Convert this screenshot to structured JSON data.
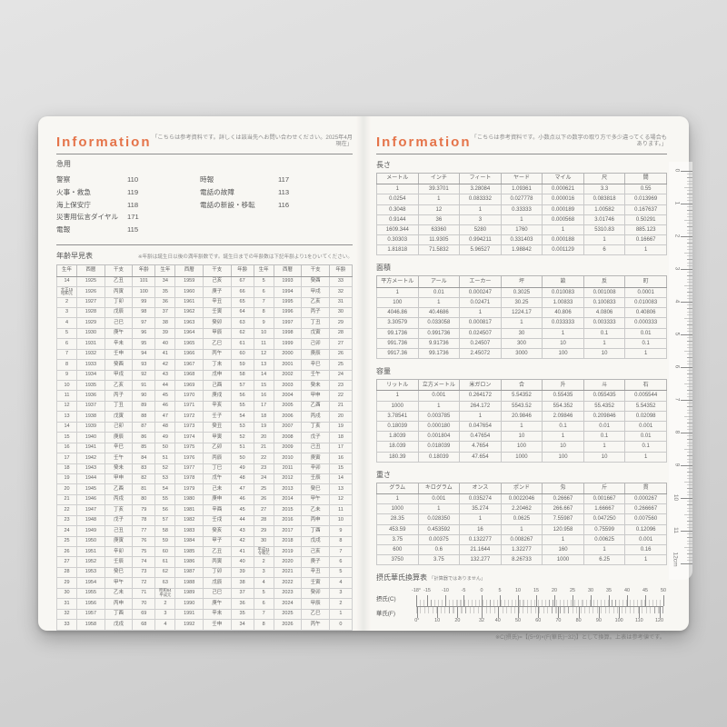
{
  "left_page": {
    "title": "Information",
    "note": "「こちらは参考資料です。詳しくは該当先へお問い合わせください。2025年4月現在」",
    "emergency": {
      "heading": "急用",
      "col1": [
        {
          "label": "警察",
          "number": "110"
        },
        {
          "label": "火事・救急",
          "number": "119"
        },
        {
          "label": "海上保安庁",
          "number": "118"
        },
        {
          "label": "災害用伝言ダイヤル",
          "number": "171"
        },
        {
          "label": "電報",
          "number": "115"
        }
      ],
      "col2": [
        {
          "label": "時報",
          "number": "117"
        },
        {
          "label": "電話の故障",
          "number": "113"
        },
        {
          "label": "電話の新設・移転",
          "number": "116"
        }
      ]
    },
    "age_section": {
      "heading": "年齢早見表",
      "note": "※年齢は誕生日以後の満年齢数です。誕生日までの年齢数は下記年齢より1をひいてください。",
      "table": {
        "headers": [
          "生年",
          "西暦",
          "干支",
          "年齢",
          "生年",
          "西暦",
          "干支",
          "年齢",
          "生年",
          "西暦",
          "干支",
          "年齢"
        ],
        "rows": [
          [
            "14",
            "1925",
            "乙丑",
            "101",
            "34",
            "1959",
            "己亥",
            "67",
            "5",
            "1993",
            "癸酉",
            "33"
          ],
          [
            "大正15\n昭和元",
            "1926",
            "丙寅",
            "100",
            "35",
            "1960",
            "庚子",
            "66",
            "6",
            "1994",
            "甲戌",
            "32"
          ],
          [
            "2",
            "1927",
            "丁卯",
            "99",
            "36",
            "1961",
            "辛丑",
            "65",
            "7",
            "1995",
            "乙亥",
            "31"
          ],
          [
            "3",
            "1928",
            "戊辰",
            "98",
            "37",
            "1962",
            "壬寅",
            "64",
            "8",
            "1996",
            "丙子",
            "30"
          ],
          [
            "4",
            "1929",
            "己巳",
            "97",
            "38",
            "1963",
            "癸卯",
            "63",
            "9",
            "1997",
            "丁丑",
            "29"
          ],
          [
            "5",
            "1930",
            "庚午",
            "96",
            "39",
            "1964",
            "甲辰",
            "62",
            "10",
            "1998",
            "戊寅",
            "28"
          ],
          [
            "6",
            "1931",
            "辛未",
            "95",
            "40",
            "1965",
            "乙巳",
            "61",
            "11",
            "1999",
            "己卯",
            "27"
          ],
          [
            "7",
            "1932",
            "壬申",
            "94",
            "41",
            "1966",
            "丙午",
            "60",
            "12",
            "2000",
            "庚辰",
            "26"
          ],
          [
            "8",
            "1933",
            "癸酉",
            "93",
            "42",
            "1967",
            "丁未",
            "59",
            "13",
            "2001",
            "辛巳",
            "25"
          ],
          [
            "9",
            "1934",
            "甲戌",
            "92",
            "43",
            "1968",
            "戊申",
            "58",
            "14",
            "2002",
            "壬午",
            "24"
          ],
          [
            "10",
            "1935",
            "乙亥",
            "91",
            "44",
            "1969",
            "己酉",
            "57",
            "15",
            "2003",
            "癸未",
            "23"
          ],
          [
            "11",
            "1936",
            "丙子",
            "90",
            "45",
            "1970",
            "庚戌",
            "56",
            "16",
            "2004",
            "甲申",
            "22"
          ],
          [
            "12",
            "1937",
            "丁丑",
            "89",
            "46",
            "1971",
            "辛亥",
            "55",
            "17",
            "2005",
            "乙酉",
            "21"
          ],
          [
            "13",
            "1938",
            "戊寅",
            "88",
            "47",
            "1972",
            "壬子",
            "54",
            "18",
            "2006",
            "丙戌",
            "20"
          ],
          [
            "14",
            "1939",
            "己卯",
            "87",
            "48",
            "1973",
            "癸丑",
            "53",
            "19",
            "2007",
            "丁亥",
            "19"
          ],
          [
            "15",
            "1940",
            "庚辰",
            "86",
            "49",
            "1974",
            "甲寅",
            "52",
            "20",
            "2008",
            "戊子",
            "18"
          ],
          [
            "16",
            "1941",
            "辛巳",
            "85",
            "50",
            "1975",
            "乙卯",
            "51",
            "21",
            "2009",
            "己丑",
            "17"
          ],
          [
            "17",
            "1942",
            "壬午",
            "84",
            "51",
            "1976",
            "丙辰",
            "50",
            "22",
            "2010",
            "庚寅",
            "16"
          ],
          [
            "18",
            "1943",
            "癸未",
            "83",
            "52",
            "1977",
            "丁巳",
            "49",
            "23",
            "2011",
            "辛卯",
            "15"
          ],
          [
            "19",
            "1944",
            "甲申",
            "82",
            "53",
            "1978",
            "戊午",
            "48",
            "24",
            "2012",
            "壬辰",
            "14"
          ],
          [
            "20",
            "1945",
            "乙酉",
            "81",
            "54",
            "1979",
            "己未",
            "47",
            "25",
            "2013",
            "癸巳",
            "13"
          ],
          [
            "21",
            "1946",
            "丙戌",
            "80",
            "55",
            "1980",
            "庚申",
            "46",
            "26",
            "2014",
            "甲午",
            "12"
          ],
          [
            "22",
            "1947",
            "丁亥",
            "79",
            "56",
            "1981",
            "辛酉",
            "45",
            "27",
            "2015",
            "乙未",
            "11"
          ],
          [
            "23",
            "1948",
            "戊子",
            "78",
            "57",
            "1982",
            "壬戌",
            "44",
            "28",
            "2016",
            "丙申",
            "10"
          ],
          [
            "24",
            "1949",
            "己丑",
            "77",
            "58",
            "1983",
            "癸亥",
            "43",
            "29",
            "2017",
            "丁酉",
            "9"
          ],
          [
            "25",
            "1950",
            "庚寅",
            "76",
            "59",
            "1984",
            "甲子",
            "42",
            "30",
            "2018",
            "戊戌",
            "8"
          ],
          [
            "26",
            "1951",
            "辛卯",
            "75",
            "60",
            "1985",
            "乙丑",
            "41",
            "平成31\n令和元",
            "2019",
            "己亥",
            "7"
          ],
          [
            "27",
            "1952",
            "壬辰",
            "74",
            "61",
            "1986",
            "丙寅",
            "40",
            "2",
            "2020",
            "庚子",
            "6"
          ],
          [
            "28",
            "1953",
            "癸巳",
            "73",
            "62",
            "1987",
            "丁卯",
            "39",
            "3",
            "2021",
            "辛丑",
            "5"
          ],
          [
            "29",
            "1954",
            "甲午",
            "72",
            "63",
            "1988",
            "戊辰",
            "38",
            "4",
            "2022",
            "壬寅",
            "4"
          ],
          [
            "30",
            "1955",
            "乙未",
            "71",
            "昭和64\n平成元",
            "1989",
            "己巳",
            "37",
            "5",
            "2023",
            "癸卯",
            "3"
          ],
          [
            "31",
            "1956",
            "丙申",
            "70",
            "2",
            "1990",
            "庚午",
            "36",
            "6",
            "2024",
            "甲辰",
            "2"
          ],
          [
            "32",
            "1957",
            "丁酉",
            "69",
            "3",
            "1991",
            "辛未",
            "35",
            "7",
            "2025",
            "乙巳",
            "1"
          ],
          [
            "33",
            "1958",
            "戊戌",
            "68",
            "4",
            "1992",
            "壬申",
            "34",
            "8",
            "2026",
            "丙午",
            "0"
          ]
        ]
      }
    }
  },
  "right_page": {
    "title": "Information",
    "note": "「こちらは参考資料です。小数点以下の数字の取り方で多少違ってくる場合もあります。」",
    "sections": {
      "length": {
        "heading": "長さ",
        "table": {
          "headers": [
            "メートル",
            "インチ",
            "フィート",
            "ヤード",
            "マイル",
            "尺",
            "間"
          ],
          "rows": [
            [
              "1",
              "39.3701",
              "3.28084",
              "1.09361",
              "0.000621",
              "3.3",
              "0.55"
            ],
            [
              "0.0254",
              "1",
              "0.083332",
              "0.027778",
              "0.000016",
              "0.083818",
              "0.013969"
            ],
            [
              "0.3048",
              "12",
              "1",
              "0.33333",
              "0.000189",
              "1.00582",
              "0.167637"
            ],
            [
              "0.9144",
              "36",
              "3",
              "1",
              "0.000568",
              "3.01746",
              "0.50291"
            ],
            [
              "1609.344",
              "63360",
              "5280",
              "1760",
              "1",
              "5310.83",
              "885.123"
            ],
            [
              "0.30303",
              "11.9305",
              "0.994211",
              "0.331403",
              "0.000188",
              "1",
              "0.16667"
            ],
            [
              "1.81818",
              "71.5832",
              "5.96527",
              "1.98842",
              "0.001129",
              "6",
              "1"
            ]
          ]
        }
      },
      "area": {
        "heading": "面積",
        "table": {
          "headers": [
            "平方メートル",
            "アール",
            "エーカー",
            "坪",
            "畝",
            "反",
            "町"
          ],
          "rows": [
            [
              "1",
              "0.01",
              "0.000247",
              "0.3025",
              "0.010083",
              "0.001008",
              "0.0001"
            ],
            [
              "100",
              "1",
              "0.02471",
              "30.25",
              "1.00833",
              "0.100833",
              "0.010083"
            ],
            [
              "4046.86",
              "40.4686",
              "1",
              "1224.17",
              "40.806",
              "4.0806",
              "0.40806"
            ],
            [
              "3.30579",
              "0.033058",
              "0.000817",
              "1",
              "0.033333",
              "0.003333",
              "0.000333"
            ],
            [
              "99.1736",
              "0.991736",
              "0.024507",
              "30",
              "1",
              "0.1",
              "0.01"
            ],
            [
              "991.736",
              "9.91736",
              "0.24507",
              "300",
              "10",
              "1",
              "0.1"
            ],
            [
              "9917.36",
              "99.1736",
              "2.45072",
              "3000",
              "100",
              "10",
              "1"
            ]
          ]
        }
      },
      "capacity": {
        "heading": "容量",
        "table": {
          "headers": [
            "リットル",
            "立方メートル",
            "米ガロン",
            "合",
            "升",
            "斗",
            "石"
          ],
          "rows": [
            [
              "1",
              "0.001",
              "0.264172",
              "5.54352",
              "0.55435",
              "0.055435",
              "0.005544"
            ],
            [
              "1000",
              "1",
              "264.172",
              "5543.52",
              "554.352",
              "55.4352",
              "5.54352"
            ],
            [
              "3.78541",
              "0.003785",
              "1",
              "20.9846",
              "2.09846",
              "0.209846",
              "0.02098"
            ],
            [
              "0.18039",
              "0.000180",
              "0.047654",
              "1",
              "0.1",
              "0.01",
              "0.001"
            ],
            [
              "1.8039",
              "0.001804",
              "0.47654",
              "10",
              "1",
              "0.1",
              "0.01"
            ],
            [
              "18.039",
              "0.018039",
              "4.7654",
              "100",
              "10",
              "1",
              "0.1"
            ],
            [
              "180.39",
              "0.18039",
              "47.654",
              "1000",
              "100",
              "10",
              "1"
            ]
          ]
        }
      },
      "weight": {
        "heading": "重さ",
        "table": {
          "headers": [
            "グラム",
            "キログラム",
            "オンス",
            "ポンド",
            "匁",
            "斤",
            "貫"
          ],
          "rows": [
            [
              "1",
              "0.001",
              "0.035274",
              "0.0022046",
              "0.26667",
              "0.001667",
              "0.000267"
            ],
            [
              "1000",
              "1",
              "35.274",
              "2.20462",
              "266.667",
              "1.66667",
              "0.266667"
            ],
            [
              "28.35",
              "0.028350",
              "1",
              "0.0625",
              "7.55987",
              "0.047250",
              "0.007560"
            ],
            [
              "453.59",
              "0.453592",
              "16",
              "1",
              "120.958",
              "0.75599",
              "0.12096"
            ],
            [
              "3.75",
              "0.00375",
              "0.132277",
              "0.008267",
              "1",
              "0.00625",
              "0.001"
            ],
            [
              "600",
              "0.6",
              "21.1644",
              "1.32277",
              "160",
              "1",
              "0.16"
            ],
            [
              "3750",
              "3.75",
              "132.277",
              "8.26733",
              "1000",
              "6.25",
              "1"
            ]
          ]
        }
      },
      "temperature": {
        "heading": "摂氏華氏換算表",
        "heading_note": "「計算器ではありません」",
        "celsius_label": "摂氏(C)",
        "fahrenheit_label": "華氏(F)",
        "celsius_ticks": [
          "-18°",
          "-15",
          "-10",
          "-5",
          "0",
          "5",
          "10",
          "15",
          "20",
          "25",
          "30",
          "35",
          "40",
          "45",
          "50"
        ],
        "fahrenheit_ticks": [
          "0°",
          "10",
          "20",
          "32",
          "40",
          "50",
          "60",
          "70",
          "80",
          "90",
          "100",
          "110",
          "120"
        ],
        "formula_note": "※C(摂氏)=【(5÷9)×(F(華氏)−32)】として換算。上表は参考値です。"
      }
    },
    "ruler": {
      "cm_labels": [
        "0",
        "1",
        "2",
        "3",
        "4",
        "5",
        "6",
        "7",
        "8",
        "9",
        "10",
        "11"
      ],
      "end_label": "12cm"
    }
  }
}
